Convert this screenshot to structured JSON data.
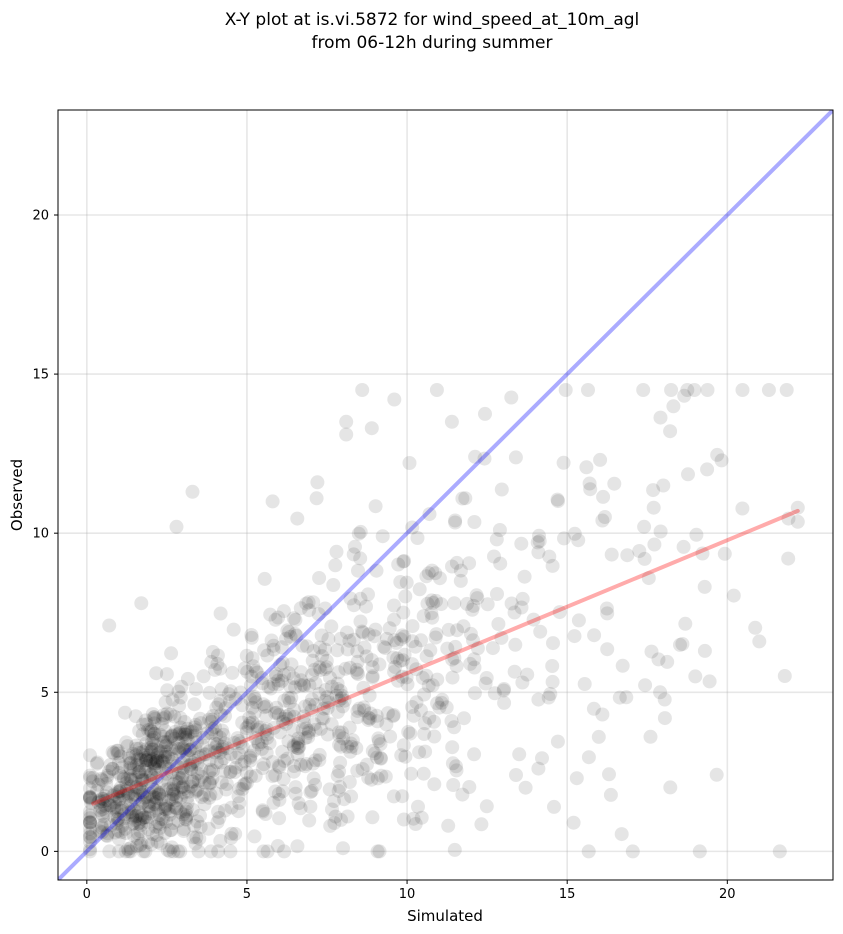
{
  "chart_data": {
    "type": "scatter",
    "title_lines": [
      "X-Y plot at is.vi.5872 for wind_speed_at_10m_agl",
      "from 06-12h during summer"
    ],
    "xlabel": "Simulated",
    "ylabel": "Observed",
    "xlim": [
      -0.9,
      23.3
    ],
    "ylim": [
      -0.9,
      23.3
    ],
    "xticks": [
      0,
      5,
      10,
      15,
      20
    ],
    "yticks": [
      0,
      5,
      10,
      15,
      20
    ],
    "xtick_labels": [
      "0",
      "5",
      "10",
      "15",
      "20"
    ],
    "ytick_labels": [
      "0",
      "5",
      "10",
      "15",
      "20"
    ],
    "grid": true,
    "point_color": "#000000",
    "point_alpha": 0.1,
    "reference_line": {
      "color": "#0000ff",
      "alpha": 0.33,
      "x": [
        -0.9,
        23.3
      ],
      "y": [
        -0.9,
        23.3
      ]
    },
    "fit_line": {
      "color": "#ff0000",
      "alpha": 0.33,
      "x": [
        0.2,
        22.2
      ],
      "y": [
        1.5,
        10.7
      ]
    },
    "point_generator": {
      "seed": 5872,
      "count": 1200,
      "x_clusters": [
        {
          "weight": 0.4,
          "mean": 2.0,
          "sd": 1.2
        },
        {
          "weight": 0.34,
          "mean": 6.0,
          "sd": 2.0
        },
        {
          "weight": 0.18,
          "mean": 10.5,
          "sd": 2.2
        },
        {
          "weight": 0.08,
          "mean": 16.5,
          "sd": 2.6
        }
      ],
      "x_range": [
        0.1,
        22.2
      ],
      "y_intercept": 1.4,
      "y_slope": 0.42,
      "y_noise_base": 0.8,
      "y_noise_slope": 0.18,
      "y_range": [
        0.0,
        14.5
      ]
    },
    "highlight_points": [
      {
        "x": 8.6,
        "y": 14.5
      },
      {
        "x": 9.6,
        "y": 14.2
      },
      {
        "x": 8.1,
        "y": 13.5
      },
      {
        "x": 11.4,
        "y": 13.5
      },
      {
        "x": 8.1,
        "y": 13.1
      },
      {
        "x": 8.9,
        "y": 13.3
      },
      {
        "x": 1.7,
        "y": 7.8
      },
      {
        "x": 0.7,
        "y": 7.1
      },
      {
        "x": 3.3,
        "y": 11.3
      },
      {
        "x": 2.8,
        "y": 10.2
      },
      {
        "x": 5.8,
        "y": 11.0
      },
      {
        "x": 7.2,
        "y": 11.6
      },
      {
        "x": 21.0,
        "y": 6.6
      },
      {
        "x": 21.9,
        "y": 9.2
      },
      {
        "x": 22.2,
        "y": 10.8
      },
      {
        "x": 17.6,
        "y": 3.6
      },
      {
        "x": 15.2,
        "y": 0.9
      },
      {
        "x": 15.3,
        "y": 2.3
      },
      {
        "x": 9.9,
        "y": 1.0
      },
      {
        "x": 8.0,
        "y": 0.1
      },
      {
        "x": 7.6,
        "y": 0.8
      },
      {
        "x": 13.7,
        "y": 2.0
      },
      {
        "x": 14.1,
        "y": 2.6
      },
      {
        "x": 13.4,
        "y": 2.4
      },
      {
        "x": 18.0,
        "y": 11.5
      },
      {
        "x": 17.7,
        "y": 10.8
      },
      {
        "x": 16.1,
        "y": 10.4
      },
      {
        "x": 17.4,
        "y": 10.2
      },
      {
        "x": 19.3,
        "y": 6.3
      },
      {
        "x": 19.0,
        "y": 5.5
      },
      {
        "x": 17.9,
        "y": 5.0
      },
      {
        "x": 16.1,
        "y": 4.3
      },
      {
        "x": 12.9,
        "y": 10.1
      },
      {
        "x": 11.5,
        "y": 10.4
      },
      {
        "x": 10.7,
        "y": 10.6
      },
      {
        "x": 14.1,
        "y": 9.4
      }
    ]
  }
}
